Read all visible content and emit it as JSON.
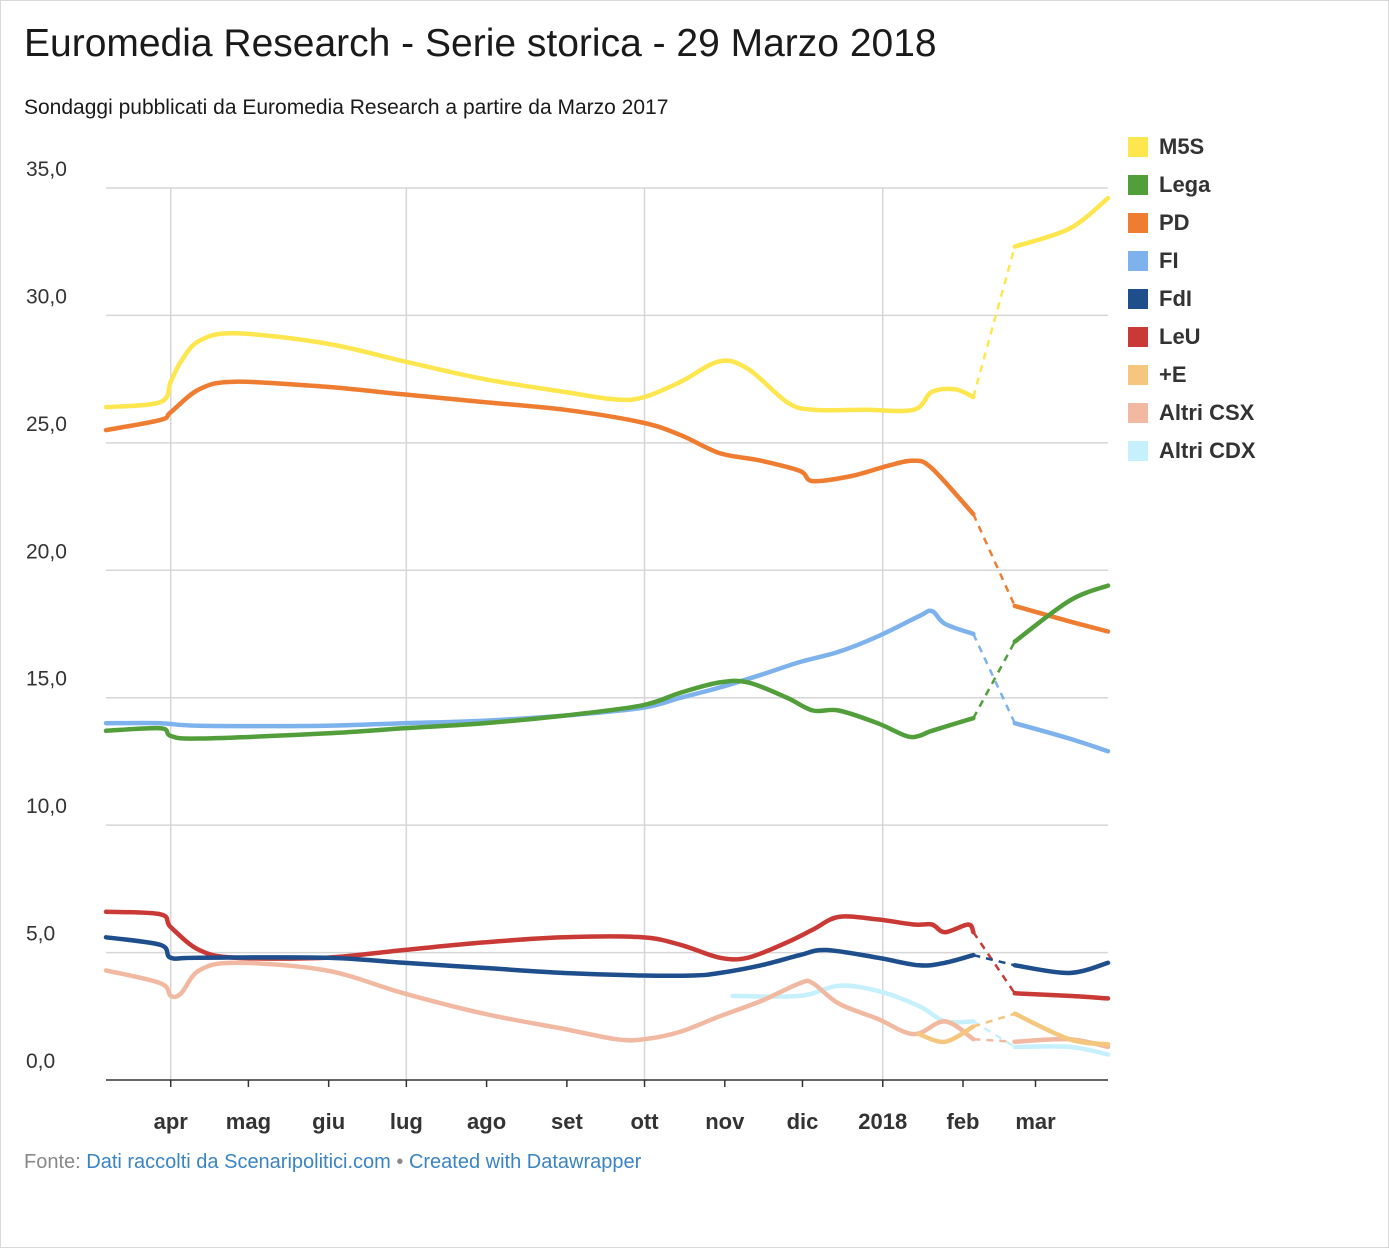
{
  "title": "Euromedia Research - Serie storica - 29 Marzo 2018",
  "subtitle": "Sondaggi pubblicati da Euromedia Research a partire da Marzo 2017",
  "footer": {
    "prefix": "Fonte: ",
    "source_link": "Dati raccolti da Scenaripolitici.com",
    "separator": " • ",
    "credit_link": "Created with Datawrapper"
  },
  "chart_data": {
    "type": "line",
    "title": "Euromedia Research - Serie storica - 29 Marzo 2018",
    "subtitle": "Sondaggi pubblicati da Euromedia Research a partire da Marzo 2017",
    "x_ticks": [
      {
        "label": "apr",
        "date": "2017-04-01"
      },
      {
        "label": "mag",
        "date": "2017-05-01"
      },
      {
        "label": "giu",
        "date": "2017-06-01"
      },
      {
        "label": "lug",
        "date": "2017-07-01"
      },
      {
        "label": "ago",
        "date": "2017-08-01"
      },
      {
        "label": "set",
        "date": "2017-09-01"
      },
      {
        "label": "ott",
        "date": "2017-10-01"
      },
      {
        "label": "nov",
        "date": "2017-11-01"
      },
      {
        "label": "dic",
        "date": "2017-12-01"
      },
      {
        "label": "2018",
        "date": "2018-01-01"
      },
      {
        "label": "feb",
        "date": "2018-02-01"
      },
      {
        "label": "mar",
        "date": "2018-03-01"
      }
    ],
    "gridline_dates": [
      "2017-04-01",
      "2017-07-01",
      "2017-10-01",
      "2018-01-01"
    ],
    "xlim": [
      "2017-03-07",
      "2018-03-29"
    ],
    "y_ticks": [
      "35,0",
      "30,0",
      "25,0",
      "20,0",
      "15,0",
      "10,0",
      "5,0",
      "0,0"
    ],
    "ylim": [
      0,
      35
    ],
    "grid": true,
    "legend_position": "right",
    "series": [
      {
        "name": "M5S",
        "color": "#fde64e",
        "data": [
          [
            "2017-03-07",
            26.4
          ],
          [
            "2017-03-28",
            26.6
          ],
          [
            "2017-04-01",
            27.4
          ],
          [
            "2017-04-05",
            28.2
          ],
          [
            "2017-04-12",
            29.0
          ],
          [
            "2017-04-26",
            29.3
          ],
          [
            "2017-05-31",
            28.9
          ],
          [
            "2017-06-30",
            28.2
          ],
          [
            "2017-07-31",
            27.5
          ],
          [
            "2017-08-31",
            27.0
          ],
          [
            "2017-09-20",
            26.7
          ],
          [
            "2017-10-01",
            26.8
          ],
          [
            "2017-10-15",
            27.4
          ],
          [
            "2017-10-30",
            28.2
          ],
          [
            "2017-11-10",
            27.9
          ],
          [
            "2017-11-25",
            26.6
          ],
          [
            "2017-12-05",
            26.3
          ],
          [
            "2017-12-25",
            26.3
          ],
          [
            "2018-01-13",
            26.3
          ],
          [
            "2018-01-20",
            27.0
          ],
          [
            "2018-01-29",
            27.1
          ],
          [
            "2018-02-05",
            26.8
          ],
          [
            "2018-02-21",
            32.7
          ],
          [
            "2018-03-14",
            33.4
          ],
          [
            "2018-03-29",
            34.6
          ]
        ],
        "dashed": [
          [
            [
              "2018-02-05",
              26.8
            ],
            [
              "2018-02-21",
              32.7
            ]
          ]
        ]
      },
      {
        "name": "Lega",
        "color": "#529e3b",
        "data": [
          [
            "2017-03-07",
            13.7
          ],
          [
            "2017-03-28",
            13.8
          ],
          [
            "2017-04-01",
            13.5
          ],
          [
            "2017-04-12",
            13.4
          ],
          [
            "2017-05-31",
            13.6
          ],
          [
            "2017-06-30",
            13.8
          ],
          [
            "2017-07-31",
            14.0
          ],
          [
            "2017-08-31",
            14.3
          ],
          [
            "2017-09-30",
            14.7
          ],
          [
            "2017-10-15",
            15.2
          ],
          [
            "2017-10-30",
            15.6
          ],
          [
            "2017-11-10",
            15.6
          ],
          [
            "2017-11-25",
            15.0
          ],
          [
            "2017-12-05",
            14.5
          ],
          [
            "2017-12-15",
            14.5
          ],
          [
            "2017-12-30",
            14.0
          ],
          [
            "2018-01-10",
            13.5
          ],
          [
            "2018-01-15",
            13.5
          ],
          [
            "2018-01-20",
            13.7
          ],
          [
            "2018-02-05",
            14.2
          ],
          [
            "2018-02-21",
            17.2
          ],
          [
            "2018-03-14",
            18.8
          ],
          [
            "2018-03-29",
            19.4
          ]
        ],
        "dashed": [
          [
            [
              "2018-02-05",
              14.2
            ],
            [
              "2018-02-21",
              17.2
            ]
          ]
        ]
      },
      {
        "name": "PD",
        "color": "#ef7d31",
        "data": [
          [
            "2017-03-07",
            25.5
          ],
          [
            "2017-03-28",
            25.9
          ],
          [
            "2017-04-01",
            26.2
          ],
          [
            "2017-04-12",
            27.1
          ],
          [
            "2017-04-26",
            27.4
          ],
          [
            "2017-05-31",
            27.2
          ],
          [
            "2017-06-30",
            26.9
          ],
          [
            "2017-07-31",
            26.6
          ],
          [
            "2017-08-31",
            26.3
          ],
          [
            "2017-09-30",
            25.8
          ],
          [
            "2017-10-15",
            25.3
          ],
          [
            "2017-10-30",
            24.6
          ],
          [
            "2017-11-15",
            24.3
          ],
          [
            "2017-11-30",
            23.9
          ],
          [
            "2017-12-05",
            23.5
          ],
          [
            "2017-12-20",
            23.7
          ],
          [
            "2018-01-03",
            24.1
          ],
          [
            "2018-01-13",
            24.3
          ],
          [
            "2018-01-20",
            24.0
          ],
          [
            "2018-02-05",
            22.2
          ],
          [
            "2018-02-21",
            18.6
          ],
          [
            "2018-03-14",
            18.0
          ],
          [
            "2018-03-29",
            17.6
          ]
        ],
        "dashed": [
          [
            [
              "2018-02-05",
              22.2
            ],
            [
              "2018-02-21",
              18.6
            ]
          ]
        ]
      },
      {
        "name": "FI",
        "color": "#7eb2ed",
        "data": [
          [
            "2017-03-07",
            14.0
          ],
          [
            "2017-03-28",
            14.0
          ],
          [
            "2017-04-12",
            13.9
          ],
          [
            "2017-05-31",
            13.9
          ],
          [
            "2017-06-30",
            14.0
          ],
          [
            "2017-07-31",
            14.1
          ],
          [
            "2017-08-31",
            14.3
          ],
          [
            "2017-09-30",
            14.6
          ],
          [
            "2017-10-15",
            15.0
          ],
          [
            "2017-10-30",
            15.4
          ],
          [
            "2017-11-15",
            15.9
          ],
          [
            "2017-11-30",
            16.4
          ],
          [
            "2017-12-15",
            16.8
          ],
          [
            "2017-12-30",
            17.4
          ],
          [
            "2018-01-15",
            18.2
          ],
          [
            "2018-01-20",
            18.4
          ],
          [
            "2018-01-25",
            17.9
          ],
          [
            "2018-02-05",
            17.5
          ],
          [
            "2018-02-21",
            14.0
          ],
          [
            "2018-03-14",
            13.4
          ],
          [
            "2018-03-29",
            12.9
          ]
        ],
        "dashed": [
          [
            [
              "2018-02-05",
              17.5
            ],
            [
              "2018-02-21",
              14.0
            ]
          ]
        ]
      },
      {
        "name": "FdI",
        "color": "#1f4e8c",
        "data": [
          [
            "2017-03-07",
            5.6
          ],
          [
            "2017-03-28",
            5.3
          ],
          [
            "2017-04-01",
            4.8
          ],
          [
            "2017-04-12",
            4.8
          ],
          [
            "2017-05-31",
            4.8
          ],
          [
            "2017-06-30",
            4.6
          ],
          [
            "2017-07-31",
            4.4
          ],
          [
            "2017-08-31",
            4.2
          ],
          [
            "2017-09-30",
            4.1
          ],
          [
            "2017-10-20",
            4.1
          ],
          [
            "2017-10-30",
            4.2
          ],
          [
            "2017-11-15",
            4.5
          ],
          [
            "2017-11-30",
            4.9
          ],
          [
            "2017-12-10",
            5.1
          ],
          [
            "2017-12-30",
            4.8
          ],
          [
            "2018-01-15",
            4.5
          ],
          [
            "2018-01-25",
            4.6
          ],
          [
            "2018-02-05",
            4.9
          ],
          [
            "2018-02-21",
            4.5
          ],
          [
            "2018-03-14",
            4.2
          ],
          [
            "2018-03-29",
            4.6
          ]
        ],
        "dashed": [
          [
            [
              "2018-02-05",
              4.9
            ],
            [
              "2018-02-21",
              4.5
            ]
          ]
        ]
      },
      {
        "name": "LeU",
        "color": "#c93a36",
        "data": [
          [
            "2017-03-07",
            6.6
          ],
          [
            "2017-03-28",
            6.5
          ],
          [
            "2017-04-01",
            6.0
          ],
          [
            "2017-04-12",
            5.1
          ],
          [
            "2017-04-26",
            4.8
          ],
          [
            "2017-05-31",
            4.8
          ],
          [
            "2017-06-30",
            5.1
          ],
          [
            "2017-07-31",
            5.4
          ],
          [
            "2017-08-31",
            5.6
          ],
          [
            "2017-09-30",
            5.6
          ],
          [
            "2017-10-15",
            5.3
          ],
          [
            "2017-10-30",
            4.8
          ],
          [
            "2017-11-10",
            4.8
          ],
          [
            "2017-11-25",
            5.4
          ],
          [
            "2017-12-05",
            5.9
          ],
          [
            "2017-12-15",
            6.4
          ],
          [
            "2017-12-30",
            6.3
          ],
          [
            "2018-01-13",
            6.1
          ],
          [
            "2018-01-20",
            6.1
          ],
          [
            "2018-01-25",
            5.8
          ],
          [
            "2018-02-03",
            6.1
          ],
          [
            "2018-02-05",
            5.8
          ],
          [
            "2018-02-21",
            3.4
          ],
          [
            "2018-03-14",
            3.3
          ],
          [
            "2018-03-29",
            3.2
          ]
        ],
        "dashed": [
          [
            [
              "2018-02-05",
              5.8
            ],
            [
              "2018-02-21",
              3.4
            ]
          ]
        ]
      },
      {
        "name": "+E",
        "color": "#f5c77e",
        "data": [
          [
            "2018-01-15",
            1.8
          ],
          [
            "2018-01-25",
            1.5
          ],
          [
            "2018-02-05",
            2.1
          ],
          [
            "2018-02-21",
            2.6
          ],
          [
            "2018-03-14",
            1.6
          ],
          [
            "2018-03-29",
            1.4
          ]
        ],
        "dashed": [
          [
            [
              "2018-02-05",
              2.1
            ],
            [
              "2018-02-21",
              2.6
            ]
          ]
        ]
      },
      {
        "name": "Altri CSX",
        "color": "#f2b9a2",
        "data": [
          [
            "2017-03-07",
            4.3
          ],
          [
            "2017-03-28",
            3.8
          ],
          [
            "2017-04-01",
            3.3
          ],
          [
            "2017-04-05",
            3.4
          ],
          [
            "2017-04-12",
            4.3
          ],
          [
            "2017-04-26",
            4.6
          ],
          [
            "2017-05-31",
            4.3
          ],
          [
            "2017-06-30",
            3.4
          ],
          [
            "2017-07-31",
            2.6
          ],
          [
            "2017-08-31",
            2.0
          ],
          [
            "2017-09-20",
            1.6
          ],
          [
            "2017-10-01",
            1.6
          ],
          [
            "2017-10-15",
            1.9
          ],
          [
            "2017-10-30",
            2.5
          ],
          [
            "2017-11-15",
            3.1
          ],
          [
            "2017-11-30",
            3.8
          ],
          [
            "2017-12-05",
            3.8
          ],
          [
            "2017-12-15",
            3.0
          ],
          [
            "2017-12-30",
            2.4
          ],
          [
            "2018-01-13",
            1.8
          ],
          [
            "2018-01-25",
            2.3
          ],
          [
            "2018-02-05",
            1.6
          ],
          [
            "2018-02-21",
            1.5
          ],
          [
            "2018-03-14",
            1.6
          ],
          [
            "2018-03-29",
            1.3
          ]
        ],
        "dashed": [
          [
            [
              "2018-02-05",
              1.6
            ],
            [
              "2018-02-21",
              1.5
            ]
          ]
        ]
      },
      {
        "name": "Altri CDX",
        "color": "#c6f0fc",
        "data": [
          [
            "2017-11-04",
            3.3
          ],
          [
            "2017-11-30",
            3.3
          ],
          [
            "2017-12-15",
            3.7
          ],
          [
            "2017-12-30",
            3.5
          ],
          [
            "2018-01-15",
            2.9
          ],
          [
            "2018-01-25",
            2.3
          ],
          [
            "2018-02-05",
            2.3
          ],
          [
            "2018-02-21",
            1.3
          ],
          [
            "2018-03-14",
            1.3
          ],
          [
            "2018-03-29",
            1.0
          ]
        ],
        "dashed": [
          [
            [
              "2018-02-05",
              2.3
            ],
            [
              "2018-02-21",
              1.3
            ]
          ]
        ]
      }
    ]
  }
}
